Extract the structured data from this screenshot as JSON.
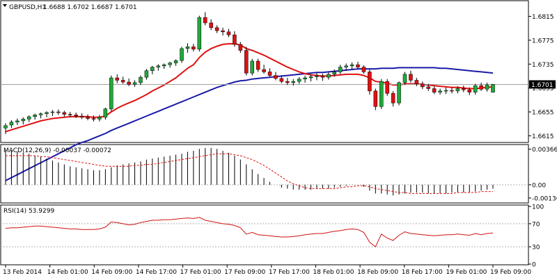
{
  "chart_data": [
    {
      "type": "candlestick",
      "symbol": "GBPUSD,H1",
      "header_values": "1.6688 1.6702 1.6687 1.6701",
      "ylim": [
        1.6605,
        1.684
      ],
      "y_ticks": [
        "1.6815",
        "1.6775",
        "1.6735",
        "1.6695",
        "1.6655",
        "1.6615"
      ],
      "y_tick_values": [
        1.6815,
        1.6775,
        1.6735,
        1.6695,
        1.6655,
        1.6615
      ],
      "last_price": "1.6701",
      "last_price_value": 1.6701,
      "candles": [
        [
          1.6628,
          1.6636,
          1.6618,
          1.6632
        ],
        [
          1.6633,
          1.6641,
          1.6628,
          1.6638
        ],
        [
          1.6638,
          1.6644,
          1.6633,
          1.664
        ],
        [
          1.664,
          1.6646,
          1.6634,
          1.6643
        ],
        [
          1.6643,
          1.6649,
          1.6638,
          1.6647
        ],
        [
          1.6647,
          1.6652,
          1.6642,
          1.665
        ],
        [
          1.665,
          1.6654,
          1.6644,
          1.6652
        ],
        [
          1.6652,
          1.6656,
          1.6646,
          1.6654
        ],
        [
          1.6654,
          1.6658,
          1.6648,
          1.6655
        ],
        [
          1.6655,
          1.6659,
          1.665,
          1.6654
        ],
        [
          1.6654,
          1.6657,
          1.6647,
          1.6651
        ],
        [
          1.6651,
          1.6655,
          1.6646,
          1.665
        ],
        [
          1.665,
          1.6654,
          1.6645,
          1.6648
        ],
        [
          1.6648,
          1.6653,
          1.6643,
          1.6646
        ],
        [
          1.6646,
          1.6651,
          1.6641,
          1.6644
        ],
        [
          1.6644,
          1.6649,
          1.6639,
          1.6643
        ],
        [
          1.6643,
          1.665,
          1.6639,
          1.6646
        ],
        [
          1.6646,
          1.6662,
          1.6642,
          1.666
        ],
        [
          1.666,
          1.6716,
          1.6656,
          1.6712
        ],
        [
          1.6712,
          1.6718,
          1.6703,
          1.6708
        ],
        [
          1.6708,
          1.6714,
          1.6702,
          1.6705
        ],
        [
          1.6705,
          1.6711,
          1.6698,
          1.6701
        ],
        [
          1.6701,
          1.6708,
          1.6697,
          1.6704
        ],
        [
          1.6704,
          1.6716,
          1.67,
          1.6713
        ],
        [
          1.6713,
          1.6727,
          1.6709,
          1.6724
        ],
        [
          1.6724,
          1.6732,
          1.6718,
          1.673
        ],
        [
          1.673,
          1.6735,
          1.6724,
          1.6732
        ],
        [
          1.6732,
          1.6736,
          1.6727,
          1.6734
        ],
        [
          1.6734,
          1.6739,
          1.6729,
          1.6737
        ],
        [
          1.6737,
          1.6743,
          1.6732,
          1.6741
        ],
        [
          1.6741,
          1.6764,
          1.6737,
          1.6761
        ],
        [
          1.6761,
          1.677,
          1.6754,
          1.6764
        ],
        [
          1.6764,
          1.6769,
          1.6756,
          1.676
        ],
        [
          1.676,
          1.6816,
          1.6756,
          1.6813
        ],
        [
          1.6813,
          1.6822,
          1.68,
          1.6804
        ],
        [
          1.6804,
          1.681,
          1.6792,
          1.6796
        ],
        [
          1.6796,
          1.68,
          1.6787,
          1.6791
        ],
        [
          1.6791,
          1.6796,
          1.6783,
          1.6789
        ],
        [
          1.6789,
          1.6794,
          1.678,
          1.6784
        ],
        [
          1.6784,
          1.679,
          1.6764,
          1.6768
        ],
        [
          1.6768,
          1.6772,
          1.6754,
          1.6758
        ],
        [
          1.6758,
          1.6764,
          1.6716,
          1.672
        ],
        [
          1.672,
          1.6744,
          1.6716,
          1.674
        ],
        [
          1.674,
          1.6744,
          1.6722,
          1.6726
        ],
        [
          1.6726,
          1.6734,
          1.6719,
          1.6722
        ],
        [
          1.6722,
          1.6728,
          1.6714,
          1.6716
        ],
        [
          1.6716,
          1.6722,
          1.6708,
          1.6711
        ],
        [
          1.6711,
          1.6716,
          1.6703,
          1.6706
        ],
        [
          1.6706,
          1.6712,
          1.67,
          1.6704
        ],
        [
          1.6704,
          1.671,
          1.6699,
          1.6706
        ],
        [
          1.6706,
          1.6713,
          1.6702,
          1.671
        ],
        [
          1.671,
          1.6716,
          1.6704,
          1.6712
        ],
        [
          1.6712,
          1.6718,
          1.6706,
          1.6714
        ],
        [
          1.6714,
          1.672,
          1.6708,
          1.6715
        ],
        [
          1.6715,
          1.6719,
          1.6707,
          1.6713
        ],
        [
          1.6713,
          1.6721,
          1.6709,
          1.6718
        ],
        [
          1.6718,
          1.6726,
          1.6714,
          1.6722
        ],
        [
          1.6722,
          1.6734,
          1.6718,
          1.673
        ],
        [
          1.673,
          1.6736,
          1.6724,
          1.6732
        ],
        [
          1.6732,
          1.6738,
          1.6726,
          1.6734
        ],
        [
          1.6734,
          1.6739,
          1.6727,
          1.673
        ],
        [
          1.673,
          1.6733,
          1.6719,
          1.6722
        ],
        [
          1.6722,
          1.6726,
          1.6684,
          1.669
        ],
        [
          1.669,
          1.6694,
          1.6658,
          1.6664
        ],
        [
          1.6664,
          1.671,
          1.666,
          1.6706
        ],
        [
          1.6706,
          1.671,
          1.6682,
          1.6686
        ],
        [
          1.6686,
          1.669,
          1.6664,
          1.667
        ],
        [
          1.667,
          1.6706,
          1.6666,
          1.6704
        ],
        [
          1.6704,
          1.6722,
          1.67,
          1.6718
        ],
        [
          1.6718,
          1.6724,
          1.6704,
          1.6708
        ],
        [
          1.6708,
          1.6712,
          1.6698,
          1.6702
        ],
        [
          1.6702,
          1.6706,
          1.6693,
          1.6697
        ],
        [
          1.6697,
          1.6702,
          1.669,
          1.6694
        ],
        [
          1.6694,
          1.6698,
          1.6685,
          1.6688
        ],
        [
          1.6688,
          1.6694,
          1.6684,
          1.669
        ],
        [
          1.669,
          1.6696,
          1.6685,
          1.6691
        ],
        [
          1.6691,
          1.6696,
          1.6686,
          1.669
        ],
        [
          1.669,
          1.6698,
          1.6686,
          1.6694
        ],
        [
          1.6694,
          1.6699,
          1.6688,
          1.6692
        ],
        [
          1.6692,
          1.6696,
          1.6683,
          1.6688
        ],
        [
          1.6688,
          1.6702,
          1.6684,
          1.6699
        ],
        [
          1.6699,
          1.6704,
          1.669,
          1.6693
        ],
        [
          1.6693,
          1.6704,
          1.6689,
          1.67
        ],
        [
          1.6688,
          1.6702,
          1.6687,
          1.6701
        ]
      ],
      "ma_red": [
        1.6622,
        1.6625,
        1.6628,
        1.6631,
        1.6634,
        1.6637,
        1.664,
        1.6642,
        1.6644,
        1.6645,
        1.6646,
        1.6647,
        1.6647,
        1.6647,
        1.6647,
        1.6646,
        1.6646,
        1.6648,
        1.6655,
        1.6661,
        1.6666,
        1.667,
        1.6674,
        1.6679,
        1.6684,
        1.669,
        1.6695,
        1.67,
        1.6706,
        1.6712,
        1.672,
        1.6728,
        1.6734,
        1.6746,
        1.6755,
        1.6761,
        1.6765,
        1.6768,
        1.6769,
        1.6769,
        1.6767,
        1.6761,
        1.6758,
        1.6754,
        1.675,
        1.6745,
        1.674,
        1.6735,
        1.673,
        1.6726,
        1.6722,
        1.6719,
        1.6717,
        1.6716,
        1.6715,
        1.6715,
        1.6716,
        1.6717,
        1.6718,
        1.6718,
        1.6718,
        1.6716,
        1.6712,
        1.6706,
        1.6705,
        1.6703,
        1.67,
        1.67,
        1.6702,
        1.6702,
        1.6702,
        1.6701,
        1.67,
        1.6699,
        1.6698,
        1.6697,
        1.6696,
        1.6696,
        1.6695,
        1.6694,
        1.6694,
        1.6695,
        1.6696,
        1.6697
      ],
      "ma_blue": [
        1.654,
        1.6545,
        1.655,
        1.6555,
        1.656,
        1.6565,
        1.657,
        1.6575,
        1.658,
        1.6585,
        1.659,
        1.6595,
        1.66,
        1.6604,
        1.6607,
        1.6611,
        1.6615,
        1.6619,
        1.6624,
        1.6628,
        1.6632,
        1.6636,
        1.664,
        1.6644,
        1.6648,
        1.6652,
        1.6656,
        1.666,
        1.6664,
        1.6668,
        1.6672,
        1.6676,
        1.668,
        1.6684,
        1.6688,
        1.6692,
        1.6696,
        1.6699,
        1.6702,
        1.6705,
        1.6707,
        1.6708,
        1.671,
        1.6711,
        1.6712,
        1.6713,
        1.6714,
        1.6715,
        1.6716,
        1.6717,
        1.6718,
        1.6719,
        1.672,
        1.6721,
        1.6721,
        1.6722,
        1.6723,
        1.6724,
        1.6725,
        1.6726,
        1.6727,
        1.6727,
        1.6727,
        1.6727,
        1.6728,
        1.6728,
        1.6728,
        1.6729,
        1.6729,
        1.6729,
        1.6729,
        1.6729,
        1.6729,
        1.6729,
        1.6728,
        1.6728,
        1.6727,
        1.6726,
        1.6725,
        1.6724,
        1.6723,
        1.6722,
        1.6721,
        1.672
      ]
    },
    {
      "type": "bar",
      "name": "MACD(12,26,9)",
      "header": "MACD(12,26,9) -0.00037 -0.00072",
      "ylim": [
        -0.0018,
        0.004
      ],
      "y_ticks": [
        "0.00366",
        "0.00",
        "-0.00136"
      ],
      "y_tick_values": [
        0.00366,
        0.0,
        -0.00136
      ],
      "histogram": [
        0.0036,
        0.0035,
        0.0034,
        0.0033,
        0.0032,
        0.003,
        0.0029,
        0.0027,
        0.0025,
        0.0023,
        0.0021,
        0.0019,
        0.0018,
        0.0017,
        0.0016,
        0.0015,
        0.0015,
        0.0016,
        0.0018,
        0.002,
        0.0021,
        0.0022,
        0.0023,
        0.0024,
        0.0026,
        0.0027,
        0.0028,
        0.0029,
        0.003,
        0.0031,
        0.0032,
        0.0034,
        0.0035,
        0.0037,
        0.0038,
        0.0038,
        0.0037,
        0.0035,
        0.0033,
        0.003,
        0.0026,
        0.0021,
        0.0016,
        0.0011,
        0.0007,
        0.0003,
        0.0,
        -0.0003,
        -0.0004,
        -0.0005,
        -0.0005,
        -0.0005,
        -0.0005,
        -0.0004,
        -0.0004,
        -0.0004,
        -0.0003,
        -0.0002,
        -0.0001,
        0.0,
        0.0,
        -0.0002,
        -0.0006,
        -0.0009,
        -0.0009,
        -0.001,
        -0.0011,
        -0.001,
        -0.0009,
        -0.0008,
        -0.0008,
        -0.0008,
        -0.0009,
        -0.0009,
        -0.0009,
        -0.0009,
        -0.0008,
        -0.0008,
        -0.0008,
        -0.0008,
        -0.0007,
        -0.0006,
        -0.0005,
        -0.0004
      ],
      "signal": [
        0.003,
        0.003,
        0.003,
        0.003,
        0.003,
        0.003,
        0.0029,
        0.0029,
        0.0028,
        0.0027,
        0.0026,
        0.0025,
        0.0024,
        0.0023,
        0.0022,
        0.0021,
        0.002,
        0.0019,
        0.0019,
        0.0019,
        0.0019,
        0.0019,
        0.002,
        0.002,
        0.0021,
        0.0021,
        0.0022,
        0.0023,
        0.0024,
        0.0025,
        0.0026,
        0.0027,
        0.0028,
        0.0029,
        0.003,
        0.0031,
        0.0032,
        0.0032,
        0.0032,
        0.0031,
        0.003,
        0.0028,
        0.0026,
        0.0023,
        0.002,
        0.0016,
        0.0012,
        0.0008,
        0.0004,
        0.0001,
        -0.0001,
        -0.0003,
        -0.0004,
        -0.0004,
        -0.0004,
        -0.0004,
        -0.0004,
        -0.0003,
        -0.0002,
        -0.0002,
        -0.0001,
        -0.0001,
        -0.0002,
        -0.0004,
        -0.0005,
        -0.0006,
        -0.0007,
        -0.0008,
        -0.0008,
        -0.0009,
        -0.0009,
        -0.0009,
        -0.0009,
        -0.0009,
        -0.0009,
        -0.0009,
        -0.0009,
        -0.0008,
        -0.0008,
        -0.0008,
        -0.0008,
        -0.0007,
        -0.0007,
        -0.0007
      ]
    },
    {
      "type": "line",
      "name": "RSI(14)",
      "header": "RSI(14) 53.9299",
      "ylim": [
        0,
        100
      ],
      "y_ticks": [
        "100",
        "70",
        "30",
        "0"
      ],
      "y_tick_values": [
        100,
        70,
        30,
        0
      ],
      "levels": [
        70,
        30
      ],
      "values": [
        62,
        63,
        63,
        64,
        65,
        66,
        66,
        65,
        64,
        63,
        62,
        61,
        61,
        60,
        60,
        60,
        61,
        64,
        73,
        72,
        70,
        68,
        69,
        72,
        74,
        76,
        76,
        77,
        77,
        78,
        79,
        80,
        79,
        81,
        76,
        74,
        72,
        70,
        69,
        67,
        63,
        52,
        55,
        51,
        50,
        49,
        48,
        47,
        47,
        48,
        49,
        51,
        52,
        53,
        53,
        55,
        57,
        58,
        60,
        61,
        60,
        55,
        38,
        30,
        52,
        45,
        41,
        50,
        56,
        53,
        52,
        51,
        50,
        49,
        50,
        51,
        51,
        52,
        51,
        50,
        53,
        51,
        53,
        54
      ]
    }
  ],
  "x_labels": [
    "13 Feb 2014",
    "14 Feb 01:00",
    "14 Feb 09:00",
    "14 Feb 17:00",
    "17 Feb 01:00",
    "17 Feb 09:00",
    "17 Feb 17:00",
    "18 Feb 01:00",
    "18 Feb 09:00",
    "18 Feb 17:00",
    "19 Feb 01:00",
    "19 Feb 09:00"
  ],
  "colors": {
    "bull": "#22a83a",
    "bear": "#e01010",
    "wick": "#000000",
    "ma_red": "#e01010",
    "ma_blue": "#1a1aa8",
    "macd_hist": "#000000",
    "macd_signal": "#e01010",
    "rsi": "#d01010",
    "level_dash": "#b0b0b0",
    "price_line": "#a0a0a0",
    "frame": "#000000"
  }
}
